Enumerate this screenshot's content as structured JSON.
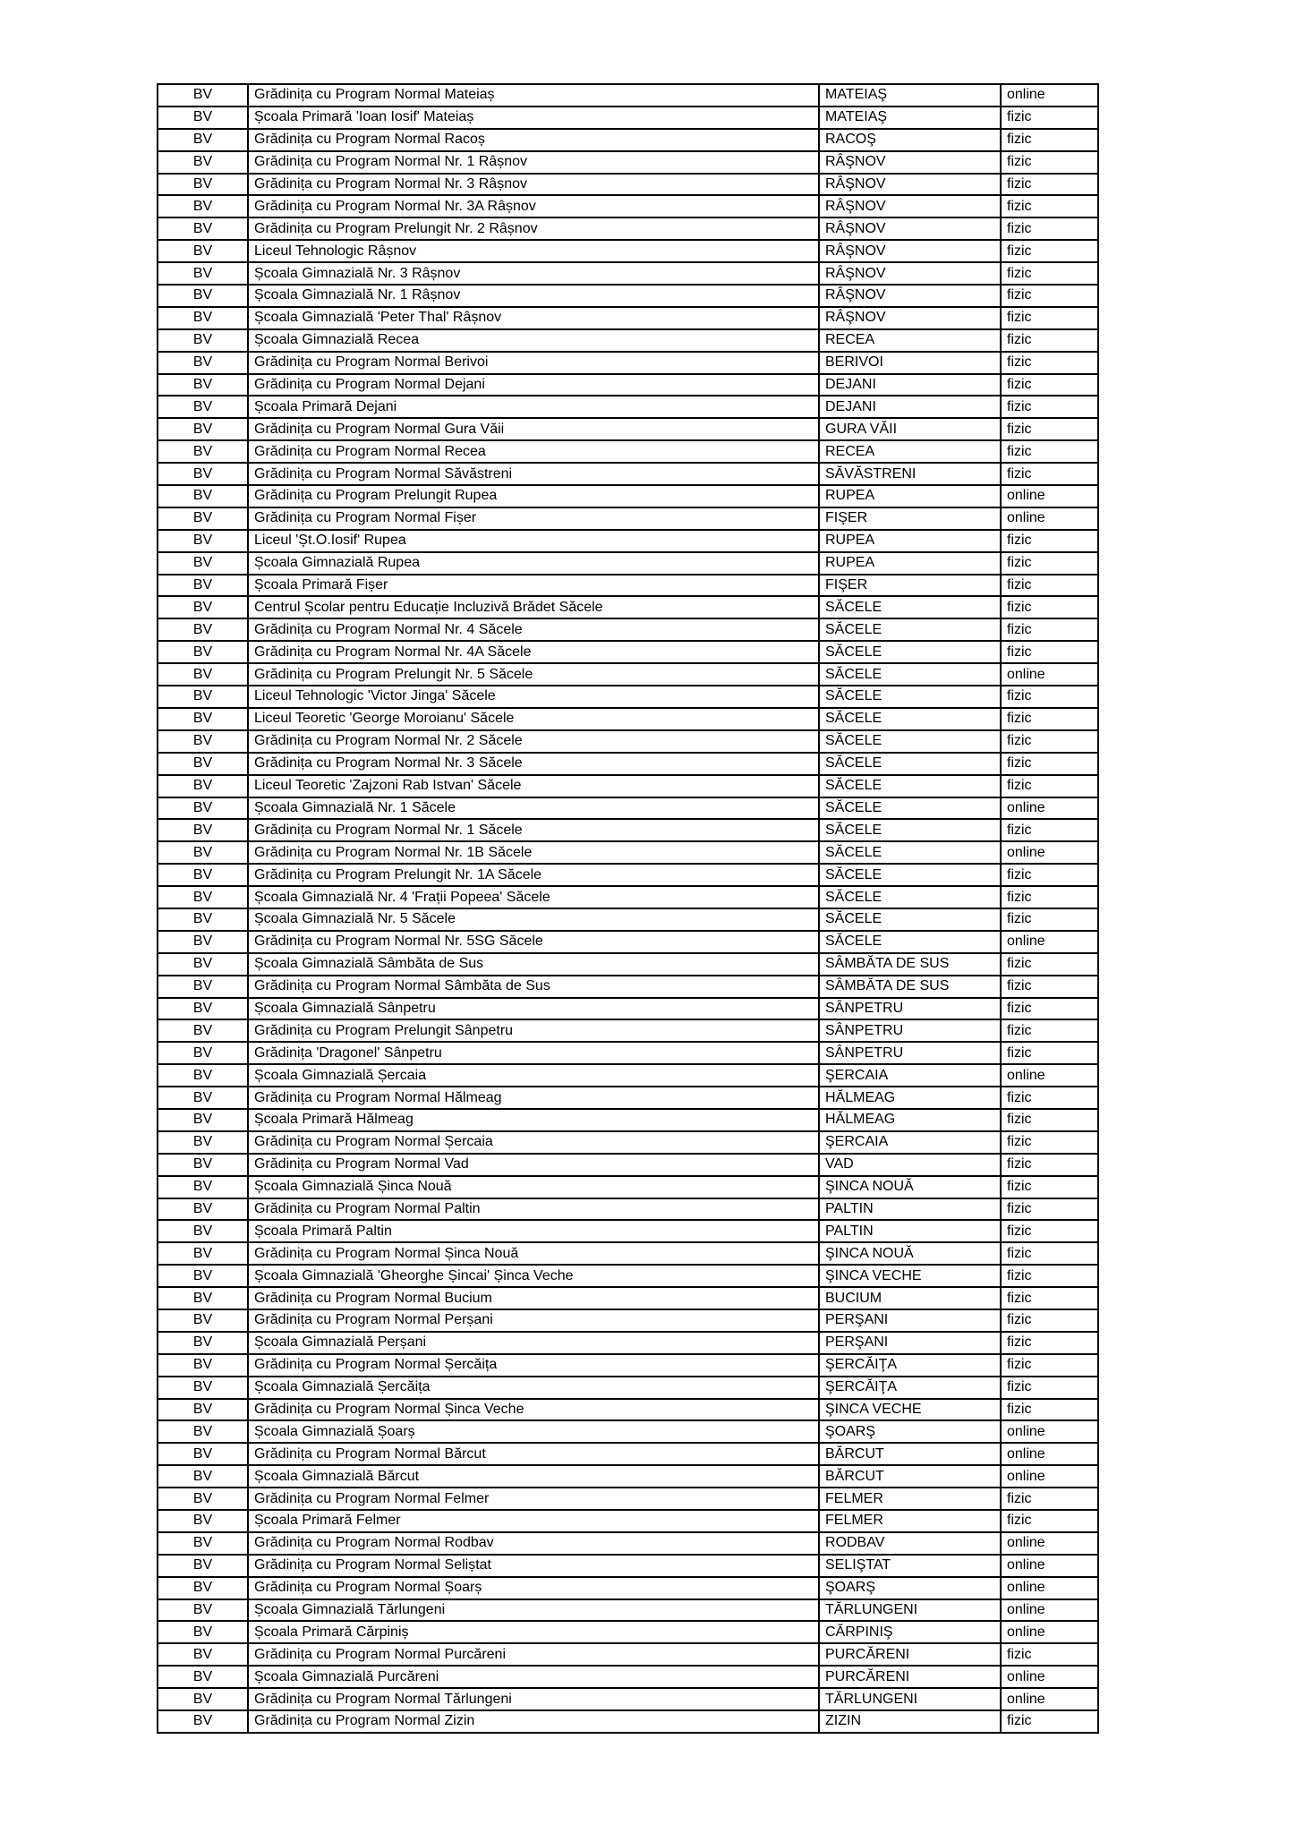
{
  "table": {
    "county_code": "BV",
    "mode_values": [
      "fizic",
      "online"
    ],
    "rows": [
      {
        "county": "BV",
        "school": "Grădinița cu Program Normal Mateiaș",
        "locality": "MATEIAŞ",
        "mode": "online"
      },
      {
        "county": "BV",
        "school": "Școala Primară 'Ioan Iosif' Mateiaș",
        "locality": "MATEIAŞ",
        "mode": "fizic"
      },
      {
        "county": "BV",
        "school": "Grădinița cu Program Normal Racoș",
        "locality": "RACOŞ",
        "mode": "fizic"
      },
      {
        "county": "BV",
        "school": "Grădinița cu Program Normal Nr. 1 Râșnov",
        "locality": "RÂŞNOV",
        "mode": "fizic"
      },
      {
        "county": "BV",
        "school": "Grădinița cu Program Normal Nr. 3 Râșnov",
        "locality": "RÂŞNOV",
        "mode": "fizic"
      },
      {
        "county": "BV",
        "school": "Grădinița cu Program Normal Nr. 3A Râșnov",
        "locality": "RÂŞNOV",
        "mode": "fizic"
      },
      {
        "county": "BV",
        "school": "Grădinița cu Program Prelungit Nr. 2 Râșnov",
        "locality": "RÂŞNOV",
        "mode": "fizic"
      },
      {
        "county": "BV",
        "school": "Liceul Tehnologic Râșnov",
        "locality": "RÂŞNOV",
        "mode": "fizic"
      },
      {
        "county": "BV",
        "school": "Școala Gimnazială Nr. 3 Râșnov",
        "locality": "RÂŞNOV",
        "mode": "fizic"
      },
      {
        "county": "BV",
        "school": "Școala Gimnazială Nr. 1 Râșnov",
        "locality": "RÂŞNOV",
        "mode": "fizic"
      },
      {
        "county": "BV",
        "school": "Școala Gimnazială 'Peter Thal' Râșnov",
        "locality": "RÂŞNOV",
        "mode": "fizic"
      },
      {
        "county": "BV",
        "school": "Școala Gimnazială Recea",
        "locality": "RECEA",
        "mode": "fizic"
      },
      {
        "county": "BV",
        "school": "Grădinița cu Program Normal Berivoi",
        "locality": "BERIVOI",
        "mode": "fizic"
      },
      {
        "county": "BV",
        "school": "Grădinița cu Program Normal Dejani",
        "locality": "DEJANI",
        "mode": "fizic"
      },
      {
        "county": "BV",
        "school": "Școala Primară Dejani",
        "locality": "DEJANI",
        "mode": "fizic"
      },
      {
        "county": "BV",
        "school": "Grădinița cu Program Normal Gura Văii",
        "locality": "GURA VĂII",
        "mode": "fizic"
      },
      {
        "county": "BV",
        "school": "Grădinița cu Program Normal Recea",
        "locality": "RECEA",
        "mode": "fizic"
      },
      {
        "county": "BV",
        "school": "Grădinița cu Program Normal Săvăstreni",
        "locality": "SĂVĂSTRENI",
        "mode": "fizic"
      },
      {
        "county": "BV",
        "school": "Grădinița cu Program Prelungit Rupea",
        "locality": "RUPEA",
        "mode": "online"
      },
      {
        "county": "BV",
        "school": "Grădinița cu Program Normal Fișer",
        "locality": "FIŞER",
        "mode": "online"
      },
      {
        "county": "BV",
        "school": "Liceul 'Șt.O.Iosif' Rupea",
        "locality": "RUPEA",
        "mode": "fizic"
      },
      {
        "county": "BV",
        "school": "Școala Gimnazială Rupea",
        "locality": "RUPEA",
        "mode": "fizic"
      },
      {
        "county": "BV",
        "school": "Școala Primară Fișer",
        "locality": "FIŞER",
        "mode": "fizic"
      },
      {
        "county": "BV",
        "school": "Centrul Școlar pentru Educație Incluzivă Brădet Săcele",
        "locality": "SĂCELE",
        "mode": "fizic"
      },
      {
        "county": "BV",
        "school": "Grădinița cu Program Normal Nr. 4 Săcele",
        "locality": "SĂCELE",
        "mode": "fizic"
      },
      {
        "county": "BV",
        "school": "Grădinița cu Program Normal Nr. 4A Săcele",
        "locality": "SĂCELE",
        "mode": "fizic"
      },
      {
        "county": "BV",
        "school": "Grădinița cu Program Prelungit Nr. 5 Săcele",
        "locality": "SĂCELE",
        "mode": "online"
      },
      {
        "county": "BV",
        "school": "Liceul Tehnologic 'Victor Jinga' Săcele",
        "locality": "SĂCELE",
        "mode": "fizic"
      },
      {
        "county": "BV",
        "school": "Liceul Teoretic 'George Moroianu' Săcele",
        "locality": "SĂCELE",
        "mode": "fizic"
      },
      {
        "county": "BV",
        "school": "Grădinița cu Program Normal Nr. 2 Săcele",
        "locality": "SĂCELE",
        "mode": "fizic"
      },
      {
        "county": "BV",
        "school": "Grădinița cu Program Normal Nr. 3 Săcele",
        "locality": "SĂCELE",
        "mode": "fizic"
      },
      {
        "county": "BV",
        "school": "Liceul Teoretic 'Zajzoni Rab Istvan' Săcele",
        "locality": "SĂCELE",
        "mode": "fizic"
      },
      {
        "county": "BV",
        "school": "Școala Gimnazială Nr. 1 Săcele",
        "locality": "SĂCELE",
        "mode": "online"
      },
      {
        "county": "BV",
        "school": "Grădinița cu Program Normal Nr. 1 Săcele",
        "locality": "SĂCELE",
        "mode": "fizic"
      },
      {
        "county": "BV",
        "school": "Grădinița cu Program Normal Nr. 1B Săcele",
        "locality": "SĂCELE",
        "mode": "online"
      },
      {
        "county": "BV",
        "school": "Grădinița cu Program Prelungit Nr. 1A Săcele",
        "locality": "SĂCELE",
        "mode": "fizic"
      },
      {
        "county": "BV",
        "school": "Școala Gimnazială Nr. 4 'Frații Popeea' Săcele",
        "locality": "SĂCELE",
        "mode": "fizic"
      },
      {
        "county": "BV",
        "school": "Școala Gimnazială Nr. 5 Săcele",
        "locality": "SĂCELE",
        "mode": "fizic"
      },
      {
        "county": "BV",
        "school": "Grădinița cu Program Normal Nr. 5SG Săcele",
        "locality": "SĂCELE",
        "mode": "online"
      },
      {
        "county": "BV",
        "school": "Școala Gimnazială Sâmbăta de Sus",
        "locality": "SÂMBĂTA DE SUS",
        "mode": "fizic"
      },
      {
        "county": "BV",
        "school": "Grădinița cu Program Normal Sâmbăta de Sus",
        "locality": "SÂMBĂTA DE SUS",
        "mode": "fizic"
      },
      {
        "county": "BV",
        "school": "Școala Gimnazială Sânpetru",
        "locality": "SÂNPETRU",
        "mode": "fizic"
      },
      {
        "county": "BV",
        "school": "Grădinița cu Program Prelungit Sânpetru",
        "locality": "SÂNPETRU",
        "mode": "fizic"
      },
      {
        "county": "BV",
        "school": "Grădinița 'Dragonel' Sânpetru",
        "locality": "SÂNPETRU",
        "mode": "fizic"
      },
      {
        "county": "BV",
        "school": "Școala Gimnazială Șercaia",
        "locality": "ŞERCAIA",
        "mode": "online"
      },
      {
        "county": "BV",
        "school": "Grădinița cu Program Normal Hălmeag",
        "locality": "HĂLMEAG",
        "mode": "fizic"
      },
      {
        "county": "BV",
        "school": "Școala Primară Hălmeag",
        "locality": "HĂLMEAG",
        "mode": "fizic"
      },
      {
        "county": "BV",
        "school": "Grădinița cu Program Normal Șercaia",
        "locality": "ŞERCAIA",
        "mode": "fizic"
      },
      {
        "county": "BV",
        "school": "Grădinița cu Program Normal Vad",
        "locality": "VAD",
        "mode": "fizic"
      },
      {
        "county": "BV",
        "school": "Școala Gimnazială Șinca Nouă",
        "locality": "ŞINCA NOUĂ",
        "mode": "fizic"
      },
      {
        "county": "BV",
        "school": "Grădinița cu Program Normal Paltin",
        "locality": "PALTIN",
        "mode": "fizic"
      },
      {
        "county": "BV",
        "school": "Școala Primară Paltin",
        "locality": "PALTIN",
        "mode": "fizic"
      },
      {
        "county": "BV",
        "school": "Grădinița cu Program Normal Șinca Nouă",
        "locality": "ŞINCA NOUĂ",
        "mode": "fizic"
      },
      {
        "county": "BV",
        "school": "Școala Gimnazială 'Gheorghe Șincai' Șinca Veche",
        "locality": "ŞINCA VECHE",
        "mode": "fizic"
      },
      {
        "county": "BV",
        "school": "Grădinița cu Program Normal Bucium",
        "locality": "BUCIUM",
        "mode": "fizic"
      },
      {
        "county": "BV",
        "school": "Grădinița cu Program Normal Perșani",
        "locality": "PERŞANI",
        "mode": "fizic"
      },
      {
        "county": "BV",
        "school": "Școala Gimnazială Perșani",
        "locality": "PERŞANI",
        "mode": "fizic"
      },
      {
        "county": "BV",
        "school": "Grădinița cu Program Normal Șercăița",
        "locality": "ŞERCĂIŢA",
        "mode": "fizic"
      },
      {
        "county": "BV",
        "school": "Școala Gimnazială Șercăița",
        "locality": "ŞERCĂIŢA",
        "mode": "fizic"
      },
      {
        "county": "BV",
        "school": "Grădinița cu Program Normal Șinca Veche",
        "locality": "ŞINCA VECHE",
        "mode": "fizic"
      },
      {
        "county": "BV",
        "school": "Școala Gimnazială Șoarș",
        "locality": "ŞOARŞ",
        "mode": "online"
      },
      {
        "county": "BV",
        "school": "Grădinița cu Program Normal Bărcut",
        "locality": "BĂRCUT",
        "mode": "online"
      },
      {
        "county": "BV",
        "school": "Școala Gimnazială Bărcut",
        "locality": "BĂRCUT",
        "mode": "online"
      },
      {
        "county": "BV",
        "school": "Grădinița cu Program Normal Felmer",
        "locality": "FELMER",
        "mode": "fizic"
      },
      {
        "county": "BV",
        "school": "Școala Primară Felmer",
        "locality": "FELMER",
        "mode": "fizic"
      },
      {
        "county": "BV",
        "school": "Grădinița cu Program Normal Rodbav",
        "locality": "RODBAV",
        "mode": "online"
      },
      {
        "county": "BV",
        "school": "Grădinița cu Program Normal Seliștat",
        "locality": "SELIŞTAT",
        "mode": "online"
      },
      {
        "county": "BV",
        "school": "Grădinița cu Program Normal Șoarș",
        "locality": "ŞOARŞ",
        "mode": "online"
      },
      {
        "county": "BV",
        "school": "Școala Gimnazială Tărlungeni",
        "locality": "TĂRLUNGENI",
        "mode": "online"
      },
      {
        "county": "BV",
        "school": "Școala Primară Cărpiniș",
        "locality": "CĂRPINIŞ",
        "mode": "online"
      },
      {
        "county": "BV",
        "school": "Grădinița cu Program Normal Purcăreni",
        "locality": "PURCĂRENI",
        "mode": "fizic"
      },
      {
        "county": "BV",
        "school": "Școala Gimnazială Purcăreni",
        "locality": "PURCĂRENI",
        "mode": "online"
      },
      {
        "county": "BV",
        "school": "Grădinița cu Program Normal Tărlungeni",
        "locality": "TĂRLUNGENI",
        "mode": "online"
      },
      {
        "county": "BV",
        "school": "Grădinița cu Program Normal Zizin",
        "locality": "ZIZIN",
        "mode": "fizic"
      }
    ]
  }
}
